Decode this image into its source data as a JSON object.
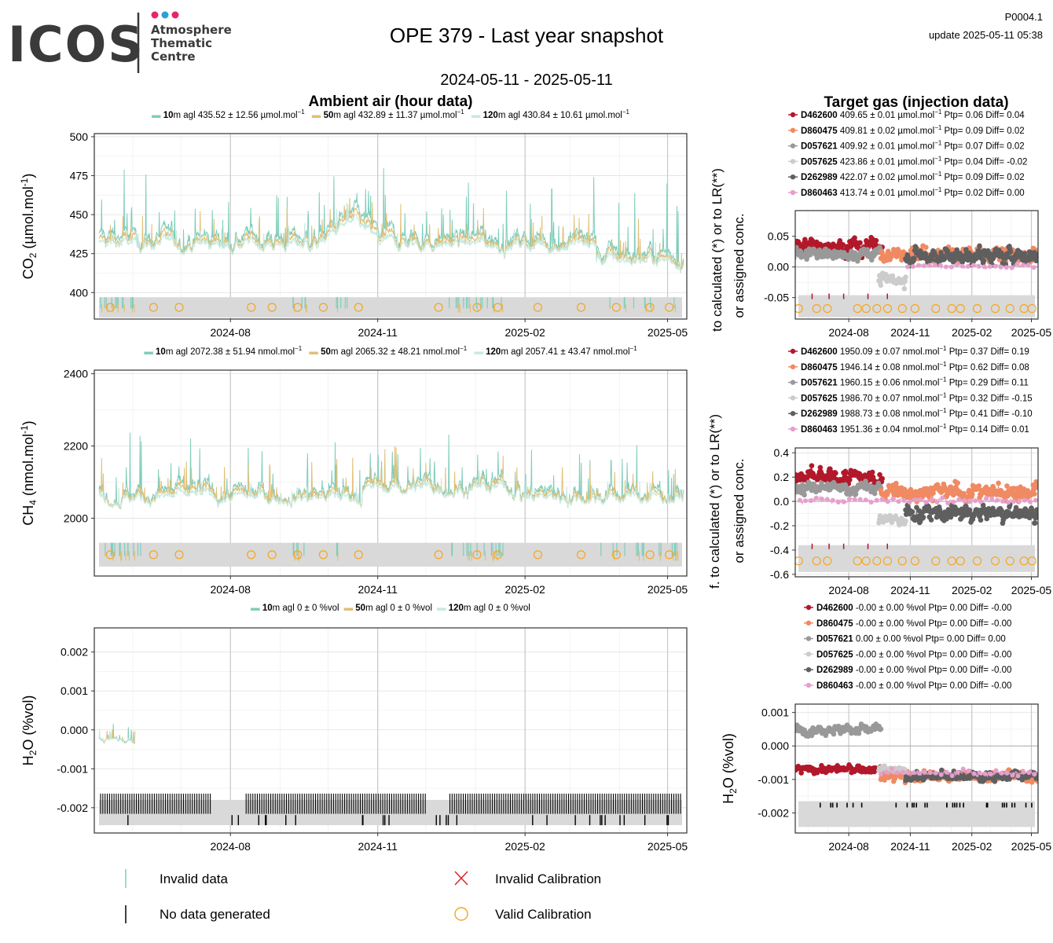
{
  "header": {
    "logo_word": "ICOS",
    "logo_sub": [
      "Atmosphere",
      "Thematic",
      "Centre"
    ],
    "logo_dots": [
      "#e6266b",
      "#2b9fd9",
      "#e6266b"
    ],
    "title": "OPE 379 - Last year snapshot",
    "date_range": "2024-05-11 - 2025-05-11",
    "code": "P0004.1",
    "update": "update  2025-05-11 05:38"
  },
  "sections": {
    "ambient_title": "Ambient air (hour data)",
    "target_title": "Target gas (injection data)",
    "target_ylabel_1": "to calculated (*) or to LR(**)",
    "target_ylabel_2": "or assigned conc.",
    "target_ylabel_ch4_1": "f. to calculated (*) or to LR(**)",
    "target_ylabel_ch4_2": "or assigned conc."
  },
  "colors": {
    "h10": "#7fcdbb",
    "h50": "#e0bf75",
    "h120": "#c7e9e0",
    "D462600": "#b2182b",
    "D860475": "#ef8a62",
    "D057621": "#999999",
    "D057625": "#cccccc",
    "D262989": "#5f5f5f",
    "D860463": "#e69fcc",
    "calib_valid": "#f5a623",
    "calib_invalid": "#e41a1c"
  },
  "ambient_legends": {
    "co2": [
      {
        "height": "10",
        "text": "m agl 435.52 ± 12.56 µmol.mol",
        "sup": "−1",
        "color_key": "h10"
      },
      {
        "height": "50",
        "text": "m agl 432.89 ± 11.37 µmol.mol",
        "sup": "−1",
        "color_key": "h50"
      },
      {
        "height": "120",
        "text": "m agl 430.84 ± 10.61 µmol.mol",
        "sup": "−1",
        "color_key": "h120"
      }
    ],
    "ch4": [
      {
        "height": "10",
        "text": "m agl 2072.38 ± 51.94 nmol.mol",
        "sup": "−1",
        "color_key": "h10"
      },
      {
        "height": "50",
        "text": "m agl 2065.32 ± 48.21 nmol.mol",
        "sup": "−1",
        "color_key": "h50"
      },
      {
        "height": "120",
        "text": "m agl 2057.41 ± 43.47 nmol.mol",
        "sup": "−1",
        "color_key": "h120"
      }
    ],
    "h2o": [
      {
        "height": "10",
        "text": "m agl 0 ± 0 %vol",
        "sup": "",
        "color_key": "h10"
      },
      {
        "height": "50",
        "text": "m agl 0 ± 0 %vol",
        "sup": "",
        "color_key": "h50"
      },
      {
        "height": "120",
        "text": "m agl 0 ± 0 %vol",
        "sup": "",
        "color_key": "h120"
      }
    ]
  },
  "target_legends": {
    "co2": [
      {
        "id": "D462600",
        "text": "409.65 ± 0.01 µmol.mol",
        "sup": "−1",
        "tail": "Ptp= 0.06 Diff= 0.04"
      },
      {
        "id": "D860475",
        "text": "409.81 ± 0.02 µmol.mol",
        "sup": "−1",
        "tail": "Ptp= 0.09 Diff= 0.02"
      },
      {
        "id": "D057621",
        "text": "409.92 ± 0.01 µmol.mol",
        "sup": "−1",
        "tail": "Ptp= 0.07 Diff= 0.02"
      },
      {
        "id": "D057625",
        "text": "423.86 ± 0.01 µmol.mol",
        "sup": "−1",
        "tail": "Ptp= 0.04 Diff= -0.02"
      },
      {
        "id": "D262989",
        "text": "422.07 ± 0.02 µmol.mol",
        "sup": "−1",
        "tail": "Ptp= 0.09 Diff= 0.02"
      },
      {
        "id": "D860463",
        "text": "413.74 ± 0.01 µmol.mol",
        "sup": "−1",
        "tail": "Ptp= 0.02 Diff= 0.00"
      }
    ],
    "ch4": [
      {
        "id": "D462600",
        "text": "1950.09 ± 0.07 nmol.mol",
        "sup": "−1",
        "tail": "Ptp= 0.37 Diff= 0.19"
      },
      {
        "id": "D860475",
        "text": "1946.14 ± 0.08 nmol.mol",
        "sup": "−1",
        "tail": "Ptp= 0.62 Diff= 0.08"
      },
      {
        "id": "D057621",
        "text": "1960.15 ± 0.06 nmol.mol",
        "sup": "−1",
        "tail": "Ptp= 0.29 Diff= 0.11"
      },
      {
        "id": "D057625",
        "text": "1986.70 ± 0.07 nmol.mol",
        "sup": "−1",
        "tail": "Ptp= 0.32 Diff= -0.15"
      },
      {
        "id": "D262989",
        "text": "1988.73 ± 0.08 nmol.mol",
        "sup": "−1",
        "tail": "Ptp= 0.41 Diff= -0.10"
      },
      {
        "id": "D860463",
        "text": "1951.36 ± 0.04 nmol.mol",
        "sup": "−1",
        "tail": "Ptp= 0.14 Diff= 0.01"
      }
    ],
    "h2o": [
      {
        "id": "D462600",
        "text": "-0.00 ± 0.00 %vol",
        "sup": "",
        "tail": "Ptp= 0.00 Diff= -0.00"
      },
      {
        "id": "D860475",
        "text": "-0.00 ± 0.00 %vol",
        "sup": "",
        "tail": "Ptp= 0.00 Diff= -0.00"
      },
      {
        "id": "D057621",
        "text": "0.00 ± 0.00 %vol",
        "sup": "",
        "tail": "Ptp= 0.00 Diff= 0.00"
      },
      {
        "id": "D057625",
        "text": "-0.00 ± 0.00 %vol",
        "sup": "",
        "tail": "Ptp= 0.00 Diff= -0.00"
      },
      {
        "id": "D262989",
        "text": "-0.00 ± 0.00 %vol",
        "sup": "",
        "tail": "Ptp= 0.00 Diff= -0.00"
      },
      {
        "id": "D860463",
        "text": "-0.00 ± 0.00 %vol",
        "sup": "",
        "tail": "Ptp= 0.00 Diff= -0.00"
      }
    ]
  },
  "bottom_legend": {
    "invalid_data": "Invalid data",
    "no_data": "No data generated",
    "invalid_calibration": "Invalid Calibration",
    "valid_calibration": "Valid Calibration"
  },
  "chart_data": [
    {
      "type": "line",
      "id": "ambient_co2",
      "ylabel": "CO2 (µmol.mol-1)",
      "ylabel_main": "CO",
      "ylabel_sub": "2",
      "ylabel_rest": " (µmol.mol",
      "ylabel_sup": "-1",
      "ylabel_end": ")",
      "x_range": [
        "2024-05-11",
        "2025-05-11"
      ],
      "xticks": [
        "2024-08",
        "2024-11",
        "2025-02",
        "2025-05"
      ],
      "ylim": [
        383,
        502
      ],
      "yticks": [
        400,
        425,
        450,
        475,
        500
      ],
      "series": [
        {
          "name": "10m agl",
          "color_key": "h10",
          "mean": 435.52,
          "sd": 12.56
        },
        {
          "name": "50m agl",
          "color_key": "h50",
          "mean": 432.89,
          "sd": 11.37
        },
        {
          "name": "120m agl",
          "color_key": "h120",
          "mean": 430.84,
          "sd": 10.61
        }
      ],
      "calibration_dates": [
        "2024-05-18",
        "2024-06-14",
        "2024-06-30",
        "2024-08-14",
        "2024-08-27",
        "2024-09-12",
        "2024-09-28",
        "2024-10-20",
        "2024-12-09",
        "2025-01-02",
        "2025-01-15",
        "2025-02-09",
        "2025-03-08",
        "2025-03-30",
        "2025-04-20",
        "2025-05-02"
      ]
    },
    {
      "type": "line",
      "id": "ambient_ch4",
      "ylabel_main": "CH",
      "ylabel_sub": "4",
      "ylabel_rest": " (nmol.mol",
      "ylabel_sup": "-1",
      "ylabel_end": ")",
      "x_range": [
        "2024-05-11",
        "2025-05-11"
      ],
      "xticks": [
        "2024-08",
        "2024-11",
        "2025-02",
        "2025-05"
      ],
      "ylim": [
        1840,
        2410
      ],
      "yticks": [
        2000,
        2200,
        2400
      ],
      "series": [
        {
          "name": "10m agl",
          "color_key": "h10",
          "mean": 2072.38,
          "sd": 51.94
        },
        {
          "name": "50m agl",
          "color_key": "h50",
          "mean": 2065.32,
          "sd": 48.21
        },
        {
          "name": "120m agl",
          "color_key": "h120",
          "mean": 2057.41,
          "sd": 43.47
        }
      ],
      "calibration_dates": [
        "2024-05-18",
        "2024-06-14",
        "2024-06-30",
        "2024-08-14",
        "2024-08-27",
        "2024-09-12",
        "2024-09-28",
        "2024-10-20",
        "2024-12-09",
        "2025-01-02",
        "2025-01-15",
        "2025-02-09",
        "2025-03-08",
        "2025-03-30",
        "2025-04-20",
        "2025-05-02"
      ]
    },
    {
      "type": "line",
      "id": "ambient_h2o",
      "ylabel_main": "H",
      "ylabel_sub": "2",
      "ylabel_rest": "O (%vol)",
      "ylabel_sup": "",
      "ylabel_end": "",
      "x_range": [
        "2024-05-11",
        "2025-05-11"
      ],
      "xticks": [
        "2024-08",
        "2024-11",
        "2025-02",
        "2025-05"
      ],
      "ylim": [
        -0.00265,
        0.00262
      ],
      "yticks": [
        -0.002,
        -0.001,
        0.0,
        0.001,
        0.002
      ],
      "ytick_labels": [
        "-0.002",
        "-0.001",
        "0.000",
        "0.001",
        "0.002"
      ],
      "series": [
        {
          "name": "10m agl",
          "color_key": "h10",
          "mean": 0,
          "sd": 0
        },
        {
          "name": "50m agl",
          "color_key": "h50",
          "mean": 0,
          "sd": 0
        },
        {
          "name": "120m agl",
          "color_key": "h120",
          "mean": 0,
          "sd": 0
        }
      ]
    },
    {
      "type": "scatter",
      "id": "target_co2",
      "x_range": [
        "2024-05-11",
        "2025-05-11"
      ],
      "xticks": [
        "2024-08",
        "2024-11",
        "2025-02",
        "2025-05"
      ],
      "ylim": [
        -0.085,
        0.092
      ],
      "yticks": [
        -0.05,
        0.0,
        0.05
      ],
      "ytick_labels": [
        "-0.05",
        "0.00",
        "0.05"
      ],
      "series": [
        {
          "name": "D462600",
          "range": [
            "2024-05-11",
            "2024-09-20"
          ],
          "level": 0.035,
          "spread": 0.012
        },
        {
          "name": "D057621",
          "range": [
            "2024-05-11",
            "2024-09-18"
          ],
          "level": 0.022,
          "spread": 0.01
        },
        {
          "name": "D860475",
          "range": [
            "2024-09-18",
            "2025-05-11"
          ],
          "level": 0.02,
          "spread": 0.013
        },
        {
          "name": "D057625",
          "range": [
            "2024-09-15",
            "2024-10-25"
          ],
          "level": -0.022,
          "spread": 0.01
        },
        {
          "name": "D262989",
          "range": [
            "2024-10-25",
            "2025-05-11"
          ],
          "level": 0.018,
          "spread": 0.013
        },
        {
          "name": "D860463",
          "range": [
            "2024-10-28",
            "2025-05-11"
          ],
          "level": 0.002,
          "spread": 0.003
        }
      ]
    },
    {
      "type": "scatter",
      "id": "target_ch4",
      "x_range": [
        "2024-05-11",
        "2025-05-11"
      ],
      "xticks": [
        "2024-08",
        "2024-11",
        "2025-02",
        "2025-05"
      ],
      "ylim": [
        -0.62,
        0.44
      ],
      "yticks": [
        -0.6,
        -0.4,
        -0.2,
        0.0,
        0.2,
        0.4
      ],
      "ytick_labels": [
        "-0.6",
        "-0.4",
        "-0.2",
        "0.0",
        "0.2",
        "0.4"
      ],
      "series": [
        {
          "name": "D462600",
          "range": [
            "2024-05-11",
            "2024-09-20"
          ],
          "level": 0.19,
          "spread": 0.07
        },
        {
          "name": "D057621",
          "range": [
            "2024-05-11",
            "2024-09-18"
          ],
          "level": 0.11,
          "spread": 0.05
        },
        {
          "name": "D860475",
          "range": [
            "2024-09-18",
            "2025-05-11"
          ],
          "level": 0.08,
          "spread": 0.07
        },
        {
          "name": "D057625",
          "range": [
            "2024-09-15",
            "2024-10-25"
          ],
          "level": -0.15,
          "spread": 0.05
        },
        {
          "name": "D262989",
          "range": [
            "2024-10-25",
            "2025-05-11"
          ],
          "level": -0.1,
          "spread": 0.07
        },
        {
          "name": "D860463",
          "range": [
            "2024-05-20",
            "2025-05-11"
          ],
          "level": 0.01,
          "spread": 0.02
        }
      ]
    },
    {
      "type": "scatter",
      "id": "target_h2o",
      "ylabel_main": "H",
      "ylabel_sub": "2",
      "ylabel_rest": "O (%vol)",
      "x_range": [
        "2024-05-11",
        "2025-05-11"
      ],
      "xticks": [
        "2024-08",
        "2024-11",
        "2025-02",
        "2025-05"
      ],
      "ylim": [
        -0.0026,
        0.00125
      ],
      "yticks": [
        -0.002,
        -0.001,
        0.0,
        0.001
      ],
      "ytick_labels": [
        "-0.002",
        "-0.001",
        "0.000",
        "0.001"
      ],
      "series": [
        {
          "name": "D057621",
          "range": [
            "2024-05-11",
            "2024-09-18"
          ],
          "level": 0.0005,
          "spread": 0.00015
        },
        {
          "name": "D462600",
          "range": [
            "2024-05-11",
            "2024-09-20"
          ],
          "level": -0.0007,
          "spread": 0.00012
        },
        {
          "name": "D860475",
          "range": [
            "2024-09-18",
            "2025-05-11"
          ],
          "level": -0.0009,
          "spread": 0.00015
        },
        {
          "name": "D057625",
          "range": [
            "2024-09-15",
            "2024-10-25"
          ],
          "level": -0.0007,
          "spread": 0.0001
        },
        {
          "name": "D262989",
          "range": [
            "2024-10-25",
            "2025-05-11"
          ],
          "level": -0.0009,
          "spread": 0.00014
        },
        {
          "name": "D860463",
          "range": [
            "2024-09-18",
            "2025-05-11"
          ],
          "level": -0.0008,
          "spread": 0.0001
        }
      ]
    }
  ]
}
